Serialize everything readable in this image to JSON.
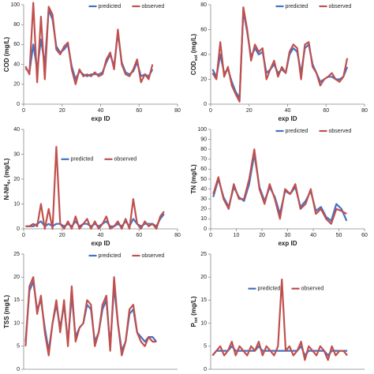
{
  "chart_data": [
    {
      "type": "line",
      "ylabel": [
        "COD (mg/L)"
      ],
      "xlabel": "exp ID",
      "xlim": [
        0,
        80
      ],
      "xticks": [
        0,
        20,
        40,
        60,
        80
      ],
      "ylim": [
        0,
        100
      ],
      "yticks": [
        0,
        20,
        40,
        60,
        80,
        100
      ],
      "legend": "top",
      "x": [
        1,
        3,
        5,
        7,
        9,
        11,
        13,
        15,
        17,
        19,
        21,
        23,
        25,
        27,
        29,
        31,
        33,
        35,
        37,
        39,
        41,
        43,
        45,
        47,
        49,
        51,
        53,
        55,
        57,
        59,
        61,
        63,
        65,
        67
      ],
      "series": [
        {
          "name": "predicted",
          "color": "#4472c4",
          "values": [
            36,
            32,
            60,
            35,
            65,
            40,
            95,
            85,
            58,
            52,
            55,
            60,
            38,
            25,
            33,
            30,
            28,
            30,
            30,
            30,
            32,
            42,
            50,
            38,
            72,
            42,
            32,
            30,
            33,
            42,
            28,
            30,
            28,
            35
          ]
        },
        {
          "name": "observed",
          "color": "#c0504d",
          "values": [
            38,
            30,
            102,
            22,
            88,
            25,
            98,
            90,
            55,
            50,
            58,
            62,
            35,
            20,
            35,
            28,
            30,
            28,
            32,
            28,
            30,
            45,
            52,
            35,
            75,
            40,
            30,
            28,
            35,
            45,
            22,
            30,
            25,
            40
          ]
        }
      ]
    },
    {
      "type": "line",
      "ylabel": [
        "COD",
        "sol",
        " (mg/L)"
      ],
      "xlabel": "exp ID",
      "xlim": [
        0,
        80
      ],
      "xticks": [
        0,
        20,
        40,
        60,
        80
      ],
      "ylim": [
        0,
        80
      ],
      "yticks": [
        0,
        20,
        40,
        60,
        80
      ],
      "legend": "top",
      "x": [
        1,
        3,
        5,
        7,
        9,
        11,
        13,
        15,
        17,
        19,
        21,
        23,
        25,
        27,
        29,
        31,
        33,
        35,
        37,
        39,
        41,
        43,
        45,
        47,
        49,
        51,
        53,
        55,
        57,
        59,
        61,
        63,
        65,
        67,
        69,
        71
      ],
      "series": [
        {
          "name": "predicted",
          "color": "#4472c4",
          "values": [
            28,
            22,
            40,
            25,
            28,
            18,
            10,
            5,
            75,
            58,
            38,
            45,
            40,
            42,
            25,
            28,
            32,
            25,
            28,
            25,
            40,
            45,
            42,
            25,
            45,
            48,
            32,
            25,
            18,
            20,
            22,
            22,
            20,
            20,
            22,
            30
          ]
        },
        {
          "name": "observed",
          "color": "#c0504d",
          "values": [
            25,
            20,
            50,
            22,
            30,
            15,
            8,
            2,
            78,
            60,
            35,
            48,
            42,
            45,
            20,
            28,
            35,
            22,
            30,
            25,
            42,
            48,
            45,
            20,
            48,
            50,
            30,
            25,
            15,
            20,
            22,
            25,
            20,
            18,
            22,
            37
          ]
        }
      ]
    },
    {
      "type": "line",
      "ylabel": [
        "N-NH",
        "4+",
        " (mg/L)"
      ],
      "xlabel": "exp ID",
      "xlim": [
        0,
        80
      ],
      "xticks": [
        0,
        20,
        40,
        60,
        80
      ],
      "ylim": [
        0,
        40
      ],
      "yticks": [
        0,
        10,
        20,
        30,
        40
      ],
      "legend": "center",
      "x": [
        1,
        3,
        5,
        7,
        9,
        11,
        13,
        15,
        17,
        19,
        21,
        23,
        25,
        27,
        29,
        31,
        33,
        35,
        37,
        39,
        41,
        43,
        45,
        47,
        49,
        51,
        53,
        55,
        57,
        59,
        61,
        63,
        65,
        67,
        69,
        71,
        73
      ],
      "series": [
        {
          "name": "predicted",
          "color": "#4472c4",
          "values": [
            1,
            1,
            1,
            2,
            3,
            1,
            2,
            1,
            2,
            2,
            1,
            2,
            1,
            3,
            1,
            2,
            2,
            1,
            2,
            1,
            2,
            3,
            1,
            1,
            2,
            1,
            3,
            1,
            4,
            2,
            1,
            2,
            2,
            2,
            1,
            4,
            6
          ]
        },
        {
          "name": "observed",
          "color": "#c0504d",
          "values": [
            1,
            1,
            2,
            1,
            10,
            0,
            8,
            0,
            33,
            2,
            0,
            3,
            0,
            5,
            0,
            2,
            4,
            0,
            3,
            0,
            2,
            5,
            0,
            1,
            3,
            0,
            4,
            0,
            12,
            2,
            0,
            3,
            1,
            2,
            0,
            5,
            7
          ]
        }
      ]
    },
    {
      "type": "line",
      "ylabel": [
        "TN (mg/L)"
      ],
      "xlabel": "exp ID",
      "xlim": [
        0,
        60
      ],
      "xticks": [
        0,
        10,
        20,
        30,
        40,
        50,
        60
      ],
      "ylim": [
        0,
        100
      ],
      "yticks": [
        0,
        10,
        20,
        30,
        40,
        50,
        60,
        70,
        80,
        90,
        100
      ],
      "legend": "top",
      "x": [
        1,
        3,
        5,
        7,
        9,
        11,
        13,
        15,
        17,
        19,
        21,
        23,
        25,
        27,
        29,
        31,
        33,
        35,
        37,
        39,
        41,
        43,
        45,
        47,
        49,
        51,
        53
      ],
      "series": [
        {
          "name": "predicted",
          "color": "#4472c4",
          "values": [
            32,
            50,
            32,
            22,
            42,
            32,
            28,
            45,
            75,
            42,
            28,
            42,
            32,
            15,
            38,
            35,
            42,
            22,
            28,
            38,
            18,
            22,
            12,
            8,
            25,
            20,
            8
          ]
        },
        {
          "name": "observed",
          "color": "#c0504d",
          "values": [
            35,
            52,
            30,
            20,
            45,
            30,
            30,
            50,
            80,
            40,
            25,
            45,
            30,
            10,
            40,
            35,
            45,
            20,
            25,
            40,
            15,
            20,
            10,
            5,
            20,
            18,
            15
          ]
        }
      ]
    },
    {
      "type": "line",
      "ylabel": [
        "TSS (mg/L)"
      ],
      "xlim": [
        0,
        80
      ],
      "ylim": [
        0,
        25
      ],
      "yticks": [
        0,
        5,
        10,
        15,
        20,
        25
      ],
      "legend": "top",
      "x": [
        1,
        3,
        5,
        7,
        9,
        11,
        13,
        15,
        17,
        19,
        21,
        23,
        25,
        27,
        29,
        31,
        33,
        35,
        37,
        39,
        41,
        43,
        45,
        47,
        49,
        51,
        53,
        55,
        57,
        59,
        61,
        63,
        65,
        67,
        69
      ],
      "series": [
        {
          "name": "predicted",
          "color": "#4472c4",
          "values": [
            6,
            17,
            19,
            13,
            15,
            9,
            4,
            10,
            14,
            9,
            14,
            6,
            16,
            7,
            9,
            10,
            14,
            13,
            6,
            8,
            13,
            15,
            5,
            18,
            10,
            4,
            6,
            12,
            13,
            8,
            7,
            6,
            7,
            7,
            6
          ]
        },
        {
          "name": "observed",
          "color": "#c0504d",
          "values": [
            5,
            18,
            20,
            12,
            16,
            8,
            3,
            10,
            15,
            8,
            15,
            5,
            18,
            6,
            9,
            10,
            15,
            14,
            5,
            8,
            14,
            16,
            4,
            20,
            10,
            3,
            6,
            13,
            14,
            8,
            6,
            5,
            7,
            6,
            6
          ]
        }
      ]
    },
    {
      "type": "line",
      "ylabel": [
        "P",
        "tot",
        " (mg/L)"
      ],
      "xlim": [
        0,
        80
      ],
      "ylim": [
        0,
        25
      ],
      "yticks": [
        0,
        5,
        10,
        15,
        20,
        25
      ],
      "legend": "center",
      "x": [
        1,
        3,
        5,
        7,
        9,
        11,
        13,
        15,
        17,
        19,
        21,
        23,
        25,
        27,
        29,
        31,
        33,
        35,
        37,
        39,
        41,
        43,
        45,
        47,
        49,
        51,
        53,
        55,
        57,
        59,
        61,
        63,
        65,
        67,
        69,
        71
      ],
      "series": [
        {
          "name": "predicted",
          "color": "#4472c4",
          "values": [
            3,
            4,
            4,
            4,
            4,
            5,
            4,
            4,
            4,
            4,
            4,
            4,
            5,
            4,
            4,
            4,
            4,
            4,
            4,
            4,
            4,
            4,
            4,
            5,
            3,
            4,
            4,
            4,
            4,
            4,
            3,
            4,
            4,
            4,
            4,
            4
          ]
        },
        {
          "name": "observed",
          "color": "#c0504d",
          "values": [
            3,
            4,
            5,
            3,
            4,
            6,
            3,
            5,
            4,
            3,
            5,
            4,
            6,
            3,
            5,
            4,
            3,
            5,
            19.5,
            4,
            5,
            3,
            4,
            6,
            2,
            5,
            4,
            3,
            5,
            4,
            2,
            5,
            3,
            4,
            4,
            3
          ]
        }
      ]
    }
  ]
}
